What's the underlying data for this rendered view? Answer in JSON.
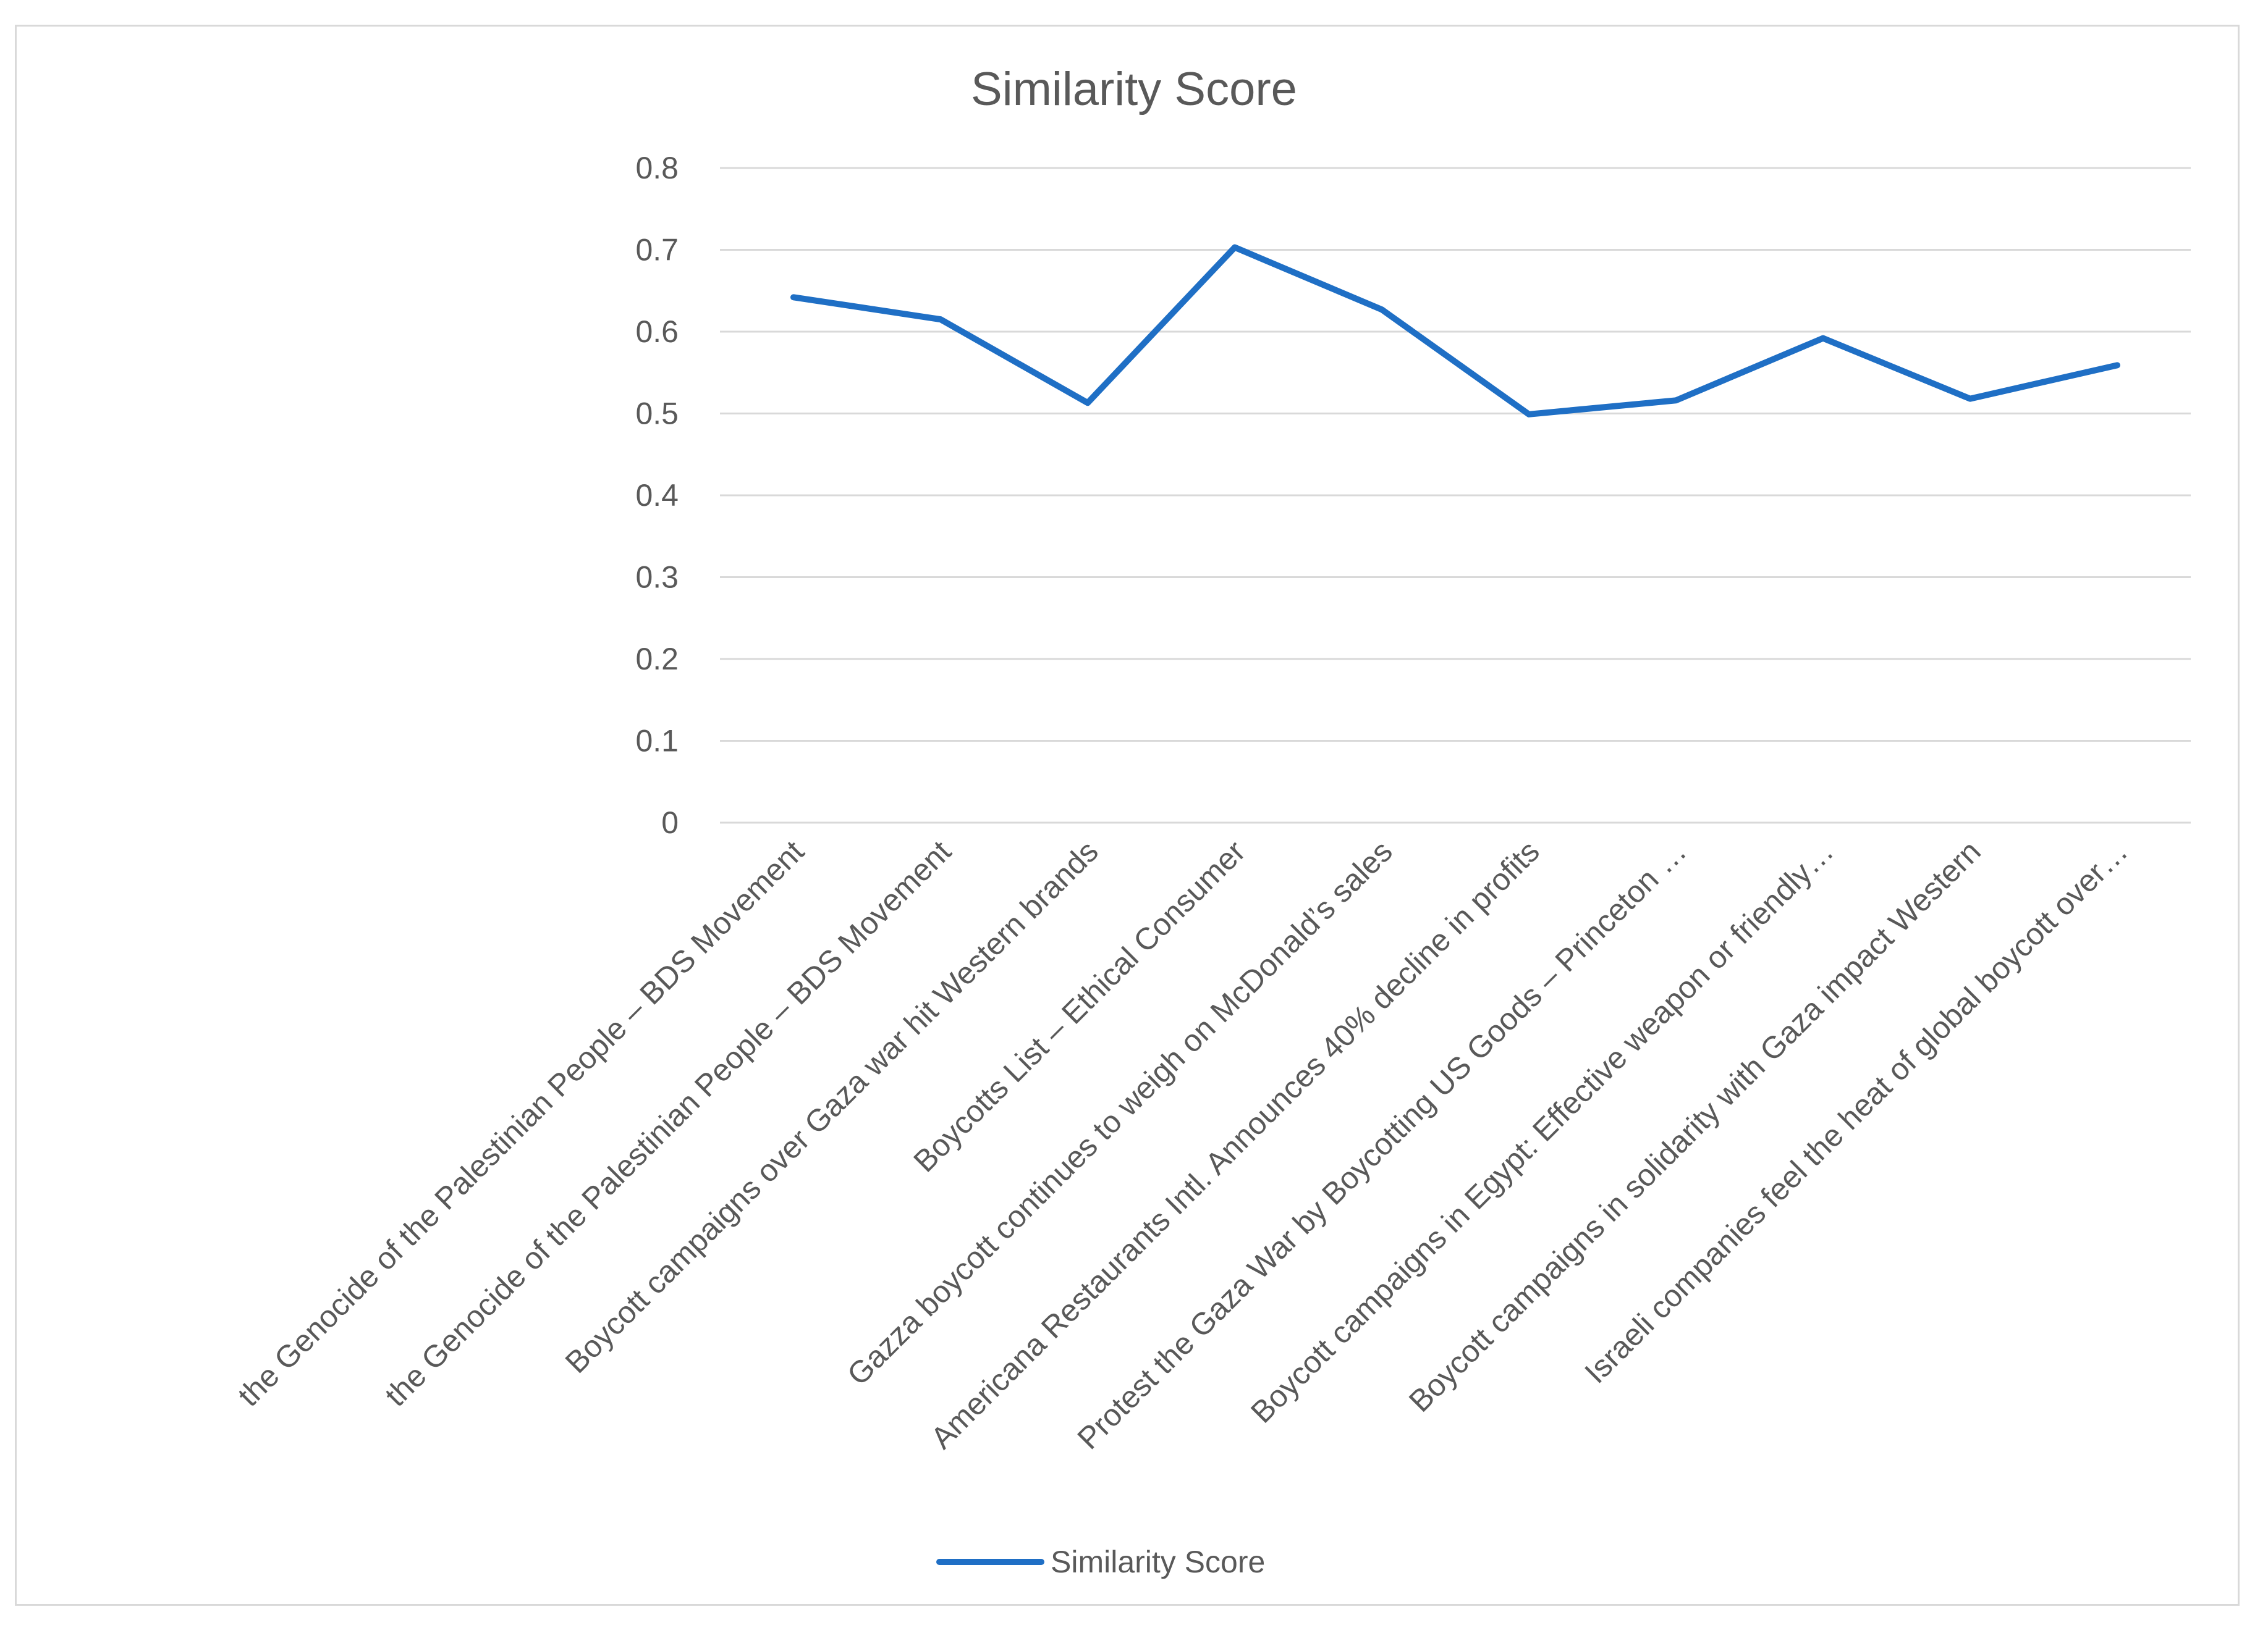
{
  "chart_data": {
    "type": "line",
    "title": "Similarity Score",
    "xlabel": "",
    "ylabel": "",
    "ylim": [
      0,
      0.8
    ],
    "yticks": [
      "0",
      "0.1",
      "0.2",
      "0.3",
      "0.4",
      "0.5",
      "0.6",
      "0.7",
      "0.8"
    ],
    "grid": true,
    "legend_position": "bottom",
    "categories": [
      "the Genocide of the Palestinian People – BDS Movement",
      "the Genocide of the Palestinian People – BDS Movement",
      "Boycott campaigns over Gaza war hit Western brands",
      "Boycotts List – Ethical Consumer",
      "Gazza boycott continues to weigh on McDonald’s sales",
      "Americana Restaurants Intl. Announces 40% decline in profits",
      "Protest the Gaza War by Boycotting US Goods – Princeton …",
      "Boycott campaigns in Egypt: Effective weapon or friendly…",
      "Boycott campaigns in solidarity with Gaza impact Western",
      "Israeli companies feel the heat of global boycott over…"
    ],
    "series": [
      {
        "name": "Similarity Score",
        "color": "#1f6fc5",
        "values": [
          0.642,
          0.615,
          0.513,
          0.703,
          0.627,
          0.499,
          0.516,
          0.592,
          0.518,
          0.559
        ]
      }
    ]
  }
}
